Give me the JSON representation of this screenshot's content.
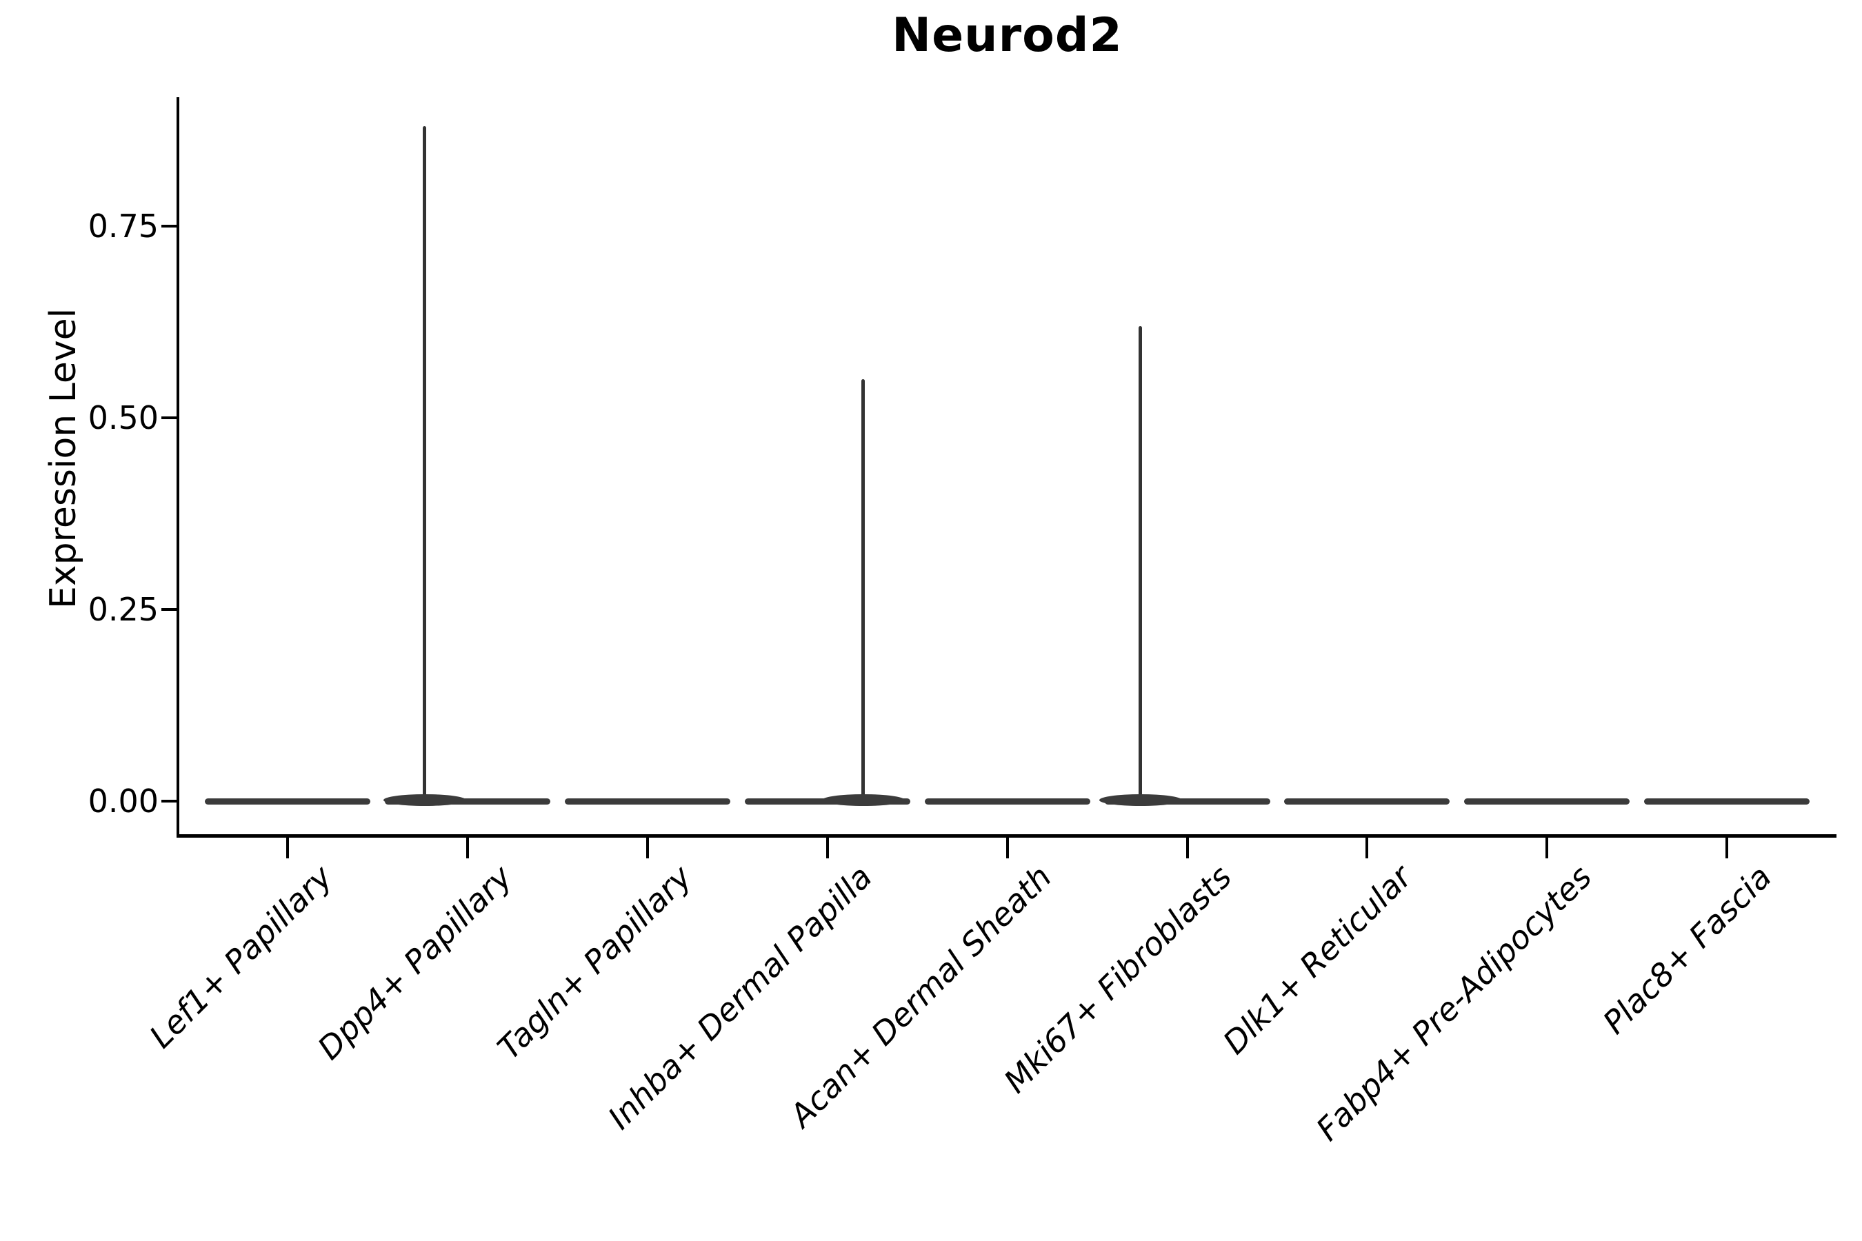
{
  "figure": {
    "title": "Neurod2",
    "background_color": "#ffffff",
    "axis_color": "#000000",
    "violin_color": "#3b3b3b",
    "spike_color": "#333333"
  },
  "y_axis": {
    "label": "Expression Level",
    "ticks": [
      {
        "value": 0.0,
        "label": "0.00"
      },
      {
        "value": 0.25,
        "label": "0.25"
      },
      {
        "value": 0.5,
        "label": "0.50"
      },
      {
        "value": 0.75,
        "label": "0.75"
      }
    ]
  },
  "x_axis": {
    "categories": [
      {
        "label": "Lef1+ Papillary",
        "max_expression": 0.0,
        "spike_dx": 0
      },
      {
        "label": "Dpp4+ Papillary",
        "max_expression": 0.88,
        "spike_dx": -62
      },
      {
        "label": "Tagln+ Papillary",
        "max_expression": 0.0,
        "spike_dx": 0
      },
      {
        "label": "Inhba+ Dermal Papilla",
        "max_expression": 0.55,
        "spike_dx": 52
      },
      {
        "label": "Acan+ Dermal Sheath",
        "max_expression": 0.0,
        "spike_dx": 0
      },
      {
        "label": "Mki67+ Fibroblasts",
        "max_expression": 0.62,
        "spike_dx": -68
      },
      {
        "label": "Dlk1+ Reticular",
        "max_expression": 0.0,
        "spike_dx": 0
      },
      {
        "label": "Fabp4+ Pre-Adipocytes",
        "max_expression": 0.0,
        "spike_dx": 0
      },
      {
        "label": "Plac8+ Fascia",
        "max_expression": 0.0,
        "spike_dx": 0
      }
    ]
  },
  "chart_data": {
    "type": "violin",
    "title": "Neurod2",
    "xlabel": "",
    "ylabel": "Expression Level",
    "ylim": [
      0,
      0.92
    ],
    "grid": false,
    "legend": "none",
    "categories": [
      "Lef1+ Papillary",
      "Dpp4+ Papillary",
      "Tagln+ Papillary",
      "Inhba+ Dermal Papilla",
      "Acan+ Dermal Sheath",
      "Mki67+ Fibroblasts",
      "Dlk1+ Reticular",
      "Fabp4+ Pre-Adipocytes",
      "Plac8+ Fascia"
    ],
    "series": [
      {
        "name": "max_expression_level",
        "values": [
          0,
          0.88,
          0,
          0.55,
          0,
          0.62,
          0,
          0,
          0
        ]
      },
      {
        "name": "bulk_expression_level_mode",
        "values": [
          0,
          0,
          0,
          0,
          0,
          0,
          0,
          0,
          0
        ]
      }
    ],
    "description": "Violin plot of Neurod2 expression per fibroblast cluster; all violins are flat at 0 with thin density spikes up to the max value in Dpp4+ Papillary, Inhba+ Dermal Papilla and Mki67+ Fibroblasts."
  }
}
